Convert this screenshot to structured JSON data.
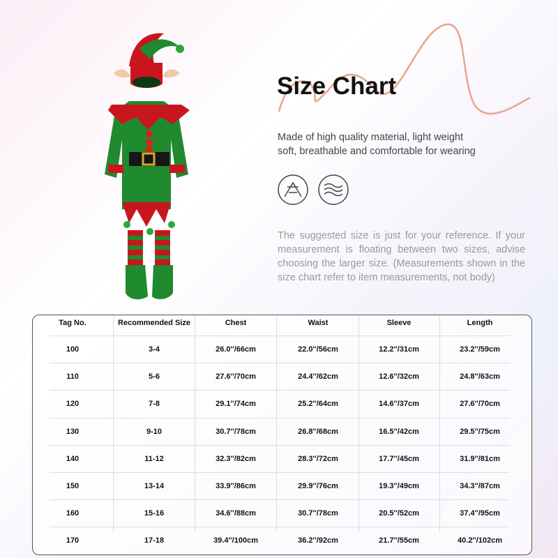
{
  "header": {
    "title": "Size Chart",
    "description": [
      "Made of high quality material, light weight",
      "soft, breathable and comfortable for wearing"
    ],
    "note": "The suggested size is just for your reference. If your measurement is floating between two sizes, advise choosing the larger size. (Measurements shown in the size chart refer to item measurements, not body)"
  },
  "table": {
    "columns": [
      "Tag No.",
      "Recommended Size",
      "Chest",
      "Waist",
      "Sleeve",
      "Length"
    ],
    "rows": [
      [
        "100",
        "3-4",
        "26.0''/66cm",
        "22.0''/56cm",
        "12.2''/31cm",
        "23.2''/59cm"
      ],
      [
        "110",
        "5-6",
        "27.6''/70cm",
        "24.4''/62cm",
        "12.6''/32cm",
        "24.8''/63cm"
      ],
      [
        "120",
        "7-8",
        "29.1''/74cm",
        "25.2''/64cm",
        "14.6''/37cm",
        "27.6''/70cm"
      ],
      [
        "130",
        "9-10",
        "30.7''/78cm",
        "26.8''/68cm",
        "16.5''/42cm",
        "29.5''/75cm"
      ],
      [
        "140",
        "11-12",
        "32.3''/82cm",
        "28.3''/72cm",
        "17.7''/45cm",
        "31.9''/81cm"
      ],
      [
        "150",
        "13-14",
        "33.9''/86cm",
        "29.9''/76cm",
        "19.3''/49cm",
        "34.3''/87cm"
      ],
      [
        "160",
        "15-16",
        "34.6''/88cm",
        "30.7''/78cm",
        "20.5''/52cm",
        "37.4''/95cm"
      ],
      [
        "170",
        "17-18",
        "39.4''/100cm",
        "36.2''/92cm",
        "21.7''/55cm",
        "40.2''/102cm"
      ]
    ]
  }
}
